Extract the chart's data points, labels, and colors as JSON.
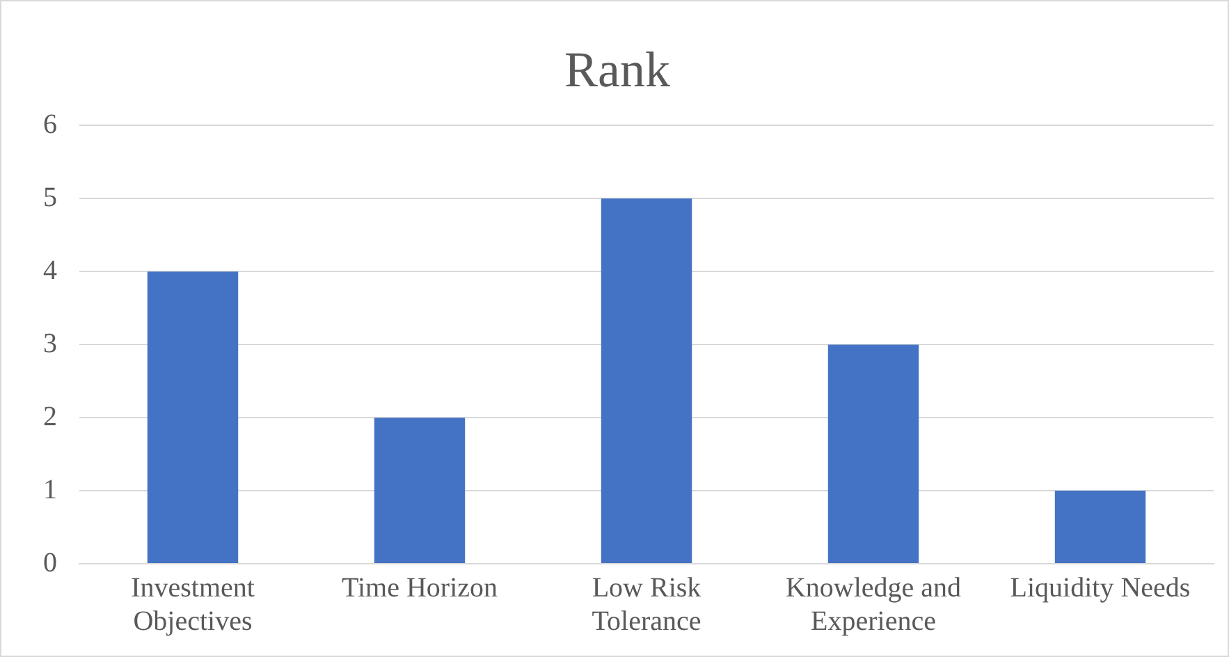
{
  "chart_data": {
    "type": "bar",
    "title": "Rank",
    "categories": [
      "Investment Objectives",
      "Time Horizon",
      "Low Risk Tolerance",
      "Knowledge and Experience",
      "Liquidity Needs"
    ],
    "values": [
      4,
      2,
      5,
      3,
      1
    ],
    "color": "#4472c4",
    "ylim": [
      0,
      6
    ],
    "yticks": [
      0,
      1,
      2,
      3,
      4,
      5,
      6
    ],
    "grid": "y"
  }
}
